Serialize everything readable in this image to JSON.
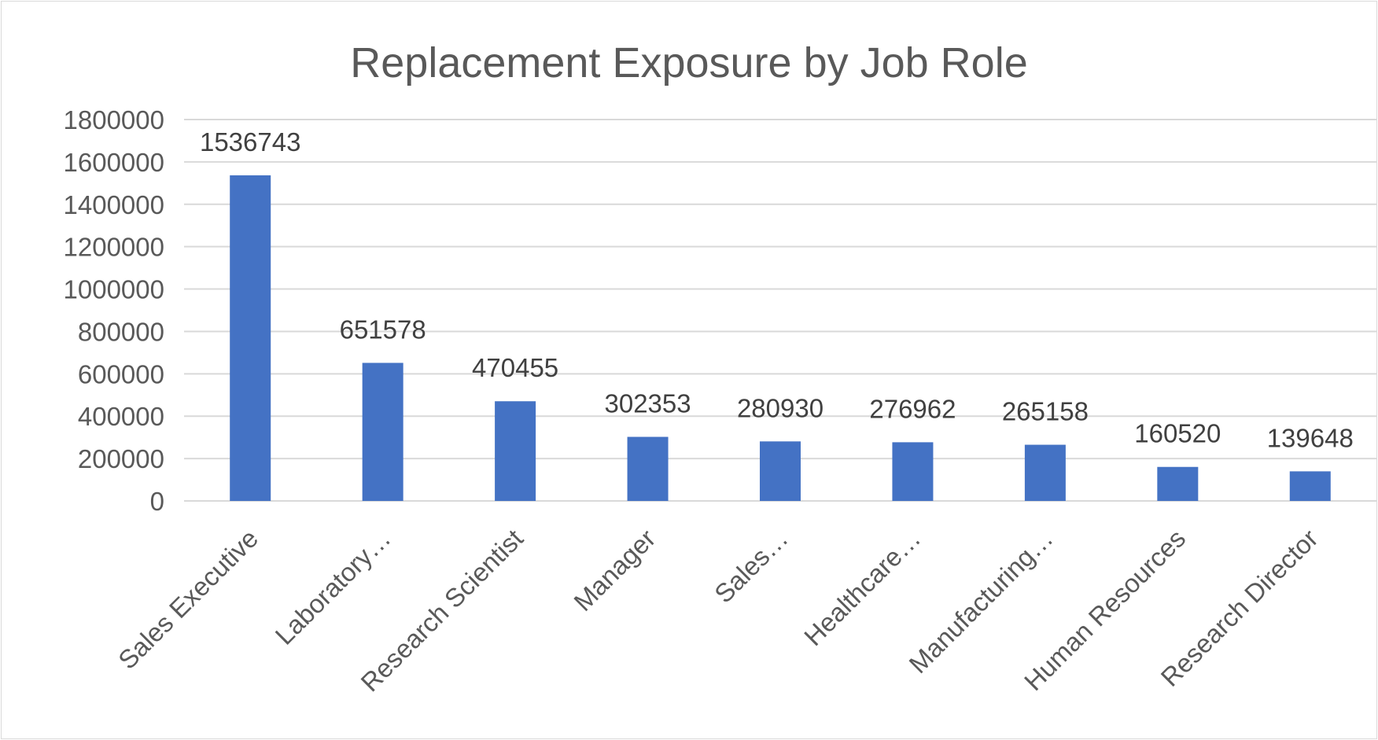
{
  "chart_data": {
    "type": "bar",
    "title": "Replacement Exposure by Job Role",
    "categories": [
      "Sales Executive",
      "Laboratory…",
      "Research Scientist",
      "Manager",
      "Sales…",
      "Healthcare…",
      "Manufacturing…",
      "Human Resources",
      "Research Director"
    ],
    "values": [
      1536743,
      651578,
      470455,
      302353,
      280930,
      276962,
      265158,
      160520,
      139648
    ],
    "data_labels": [
      "1536743",
      "651578",
      "470455",
      "302353",
      "280930",
      "276962",
      "265158",
      "160520",
      "139648"
    ],
    "y_ticks": [
      "0",
      "200000",
      "400000",
      "600000",
      "800000",
      "1000000",
      "1200000",
      "1400000",
      "1600000",
      "1800000"
    ],
    "ylim": [
      0,
      1800000
    ],
    "grid": true,
    "legend": "none",
    "bar_color": "#4472C4",
    "grid_color": "#d9d9d9"
  }
}
